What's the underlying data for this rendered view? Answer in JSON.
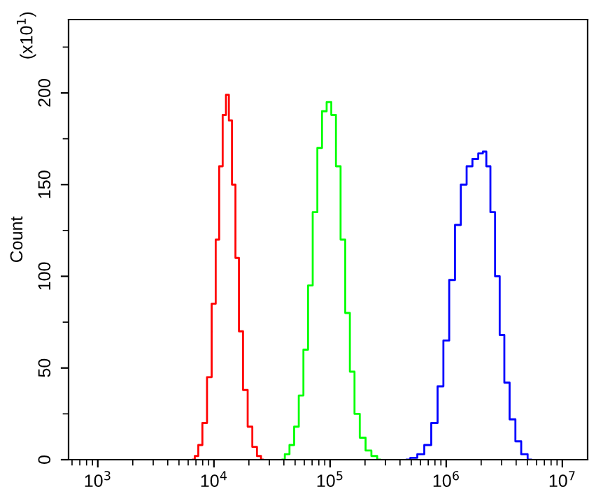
{
  "chart_data": {
    "type": "step",
    "ylabel": "Count",
    "annotations": [
      "(x10$^{1}$)"
    ],
    "log": "x",
    "xlim": [
      560,
      16500000
    ],
    "ylim": [
      0,
      240
    ],
    "xticks": [
      {
        "value": 1000,
        "label": "10$^{3}$"
      },
      {
        "value": 10000,
        "label": "10$^{4}$"
      },
      {
        "value": 100000,
        "label": "10$^{5}$"
      },
      {
        "value": 1000000,
        "label": "10$^{6}$"
      },
      {
        "value": 10000000,
        "label": "10$^{7}$"
      }
    ],
    "yticks": [
      0,
      50,
      100,
      150,
      200
    ],
    "grid": false,
    "legend": false,
    "series": [
      {
        "color": "#ff0000",
        "x": [
          6607,
          7079,
          7586,
          8318,
          9120,
          10000,
          10715,
          11482,
          12303,
          13092,
          13804,
          14791,
          15849,
          16982,
          18621,
          20417,
          22387,
          24547,
          26303
        ],
        "values": [
          0,
          2,
          8,
          20,
          45,
          85,
          120,
          160,
          188,
          199,
          185,
          150,
          110,
          70,
          38,
          18,
          7,
          2,
          0
        ]
      },
      {
        "color": "#00ff00",
        "x": [
          38905,
          42658,
          46774,
          51286,
          56234,
          61660,
          67608,
          74131,
          81283,
          89125,
          97724,
          107152,
          117490,
          128825,
          141254,
          154882,
          169824,
          190546,
          213796,
          239883,
          269153
        ],
        "values": [
          0,
          3,
          8,
          18,
          35,
          60,
          95,
          135,
          170,
          190,
          195,
          188,
          160,
          120,
          80,
          48,
          25,
          12,
          5,
          2,
          0
        ]
      },
      {
        "color": "#0000ff",
        "x": [
          457088,
          524807,
          602560,
          691831,
          794328,
          891251,
          1000000,
          1122018,
          1258925,
          1412538,
          1584893,
          1778279,
          1995262,
          2137962,
          2290868,
          2511886,
          2754229,
          3019952,
          3311311,
          3715352,
          4168694,
          4677351,
          5370318
        ],
        "values": [
          0,
          1,
          3,
          8,
          20,
          40,
          65,
          98,
          128,
          150,
          160,
          164,
          167,
          168,
          160,
          135,
          100,
          68,
          42,
          22,
          10,
          3,
          0
        ]
      }
    ]
  }
}
